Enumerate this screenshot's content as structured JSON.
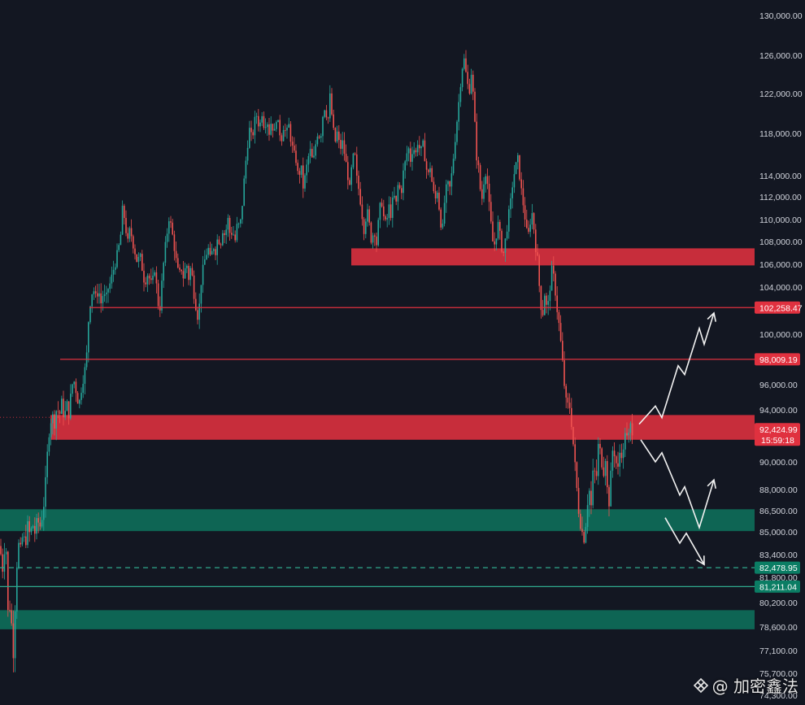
{
  "chart_data": {
    "type": "candlestick",
    "y_axis_ticks": [
      "130,000.00",
      "126,000.00",
      "122,000.00",
      "118,000.00",
      "114,000.00",
      "112,000.00",
      "110,000.00",
      "108,000.00",
      "106,000.00",
      "104,000.00",
      "100,000.00",
      "96,000.00",
      "94,000.00",
      "90,000.00",
      "88,000.00",
      "86,500.00",
      "85,000.00",
      "83,400.00",
      "81,800.00",
      "80,200.00",
      "78,600.00",
      "77,100.00",
      "75,700.00",
      "74,300.00"
    ],
    "y_axis_ticks_values": [
      130000,
      126000,
      122000,
      118000,
      114000,
      112000,
      110000,
      108000,
      106000,
      104000,
      100000,
      96000,
      94000,
      90000,
      88000,
      86500,
      85000,
      83400,
      81800,
      80200,
      78600,
      77100,
      75700,
      74300
    ],
    "price_tags": [
      {
        "value": 102258.47,
        "label": "102,258.47",
        "color": "#e0313f"
      },
      {
        "value": 98009.19,
        "label": "98,009.19",
        "color": "#e0313f"
      },
      {
        "value": 82478.95,
        "label": "82,478.95",
        "color": "#0b7d64"
      },
      {
        "value": 81211.04,
        "label": "81,211.04",
        "color": "#0b7d64"
      }
    ],
    "current_price": {
      "value": 92424.99,
      "label": "92,424.99",
      "countdown": "15:59:18",
      "color": "#e0313f"
    },
    "resistance_zones": [
      {
        "from": 105900,
        "to": 107400,
        "color": "#e0313f"
      },
      {
        "from": 91700,
        "to": 93600,
        "color": "#e0313f"
      }
    ],
    "support_zones": [
      {
        "from": 85050,
        "to": 86600,
        "color": "#0e6e5a"
      },
      {
        "from": 78450,
        "to": 79700,
        "color": "#0e6e5a"
      }
    ],
    "horizontal_lines": [
      {
        "value": 102258.47,
        "style": "solid",
        "color": "#e0313f"
      },
      {
        "value": 98009.19,
        "style": "solid",
        "color": "#e0313f"
      },
      {
        "value": 82478.95,
        "style": "dashed",
        "color": "#2fa88c"
      },
      {
        "value": 81211.04,
        "style": "solid",
        "color": "#2fa88c"
      }
    ],
    "projection_paths": [
      {
        "points": [
          [
            0,
            92900
          ],
          [
            20,
            94300
          ],
          [
            28,
            93400
          ],
          [
            48,
            97500
          ],
          [
            56,
            96800
          ],
          [
            74,
            100500
          ],
          [
            80,
            99200
          ],
          [
            92,
            101800
          ]
        ]
      },
      {
        "points": [
          [
            0,
            91700
          ],
          [
            18,
            90000
          ],
          [
            26,
            90700
          ],
          [
            48,
            87600
          ],
          [
            54,
            88200
          ],
          [
            72,
            85300
          ],
          [
            90,
            88700
          ]
        ]
      },
      {
        "points": [
          [
            0,
            86000
          ],
          [
            18,
            84200
          ],
          [
            26,
            84900
          ],
          [
            48,
            82700
          ]
        ]
      }
    ],
    "price_path": [
      [
        0,
        84000
      ],
      [
        3,
        82300
      ],
      [
        7,
        84800
      ],
      [
        10,
        79200
      ],
      [
        13,
        80300
      ],
      [
        16,
        76500
      ],
      [
        19,
        80500
      ],
      [
        22,
        84300
      ],
      [
        25,
        83600
      ],
      [
        28,
        84800
      ],
      [
        31,
        84100
      ],
      [
        34,
        85400
      ],
      [
        37,
        84700
      ],
      [
        40,
        85600
      ],
      [
        43,
        84900
      ],
      [
        46,
        85900
      ],
      [
        49,
        85300
      ],
      [
        52,
        86200
      ],
      [
        55,
        87500
      ],
      [
        58,
        90400
      ],
      [
        61,
        92800
      ],
      [
        64,
        93600
      ],
      [
        67,
        93000
      ],
      [
        70,
        94300
      ],
      [
        73,
        93500
      ],
      [
        76,
        94600
      ],
      [
        79,
        93300
      ],
      [
        82,
        94500
      ],
      [
        85,
        93600
      ],
      [
        88,
        95900
      ],
      [
        91,
        96300
      ],
      [
        94,
        95400
      ],
      [
        97,
        94300
      ],
      [
        100,
        95700
      ],
      [
        103,
        96800
      ],
      [
        106,
        97600
      ],
      [
        109,
        101400
      ],
      [
        112,
        103400
      ],
      [
        115,
        103800
      ],
      [
        118,
        103000
      ],
      [
        121,
        103900
      ],
      [
        124,
        102600
      ],
      [
        127,
        103500
      ],
      [
        130,
        102800
      ],
      [
        133,
        103900
      ],
      [
        136,
        104400
      ],
      [
        139,
        105400
      ],
      [
        142,
        106200
      ],
      [
        145,
        107100
      ],
      [
        148,
        108200
      ],
      [
        151,
        111200
      ],
      [
        154,
        109600
      ],
      [
        157,
        107800
      ],
      [
        160,
        109200
      ],
      [
        163,
        108000
      ],
      [
        166,
        107100
      ],
      [
        169,
        106100
      ],
      [
        172,
        106800
      ],
      [
        175,
        105600
      ],
      [
        178,
        104300
      ],
      [
        181,
        105200
      ],
      [
        184,
        104700
      ],
      [
        187,
        104000
      ],
      [
        190,
        105800
      ],
      [
        193,
        103700
      ],
      [
        196,
        101600
      ],
      [
        199,
        104300
      ],
      [
        202,
        106700
      ],
      [
        205,
        108500
      ],
      [
        208,
        110300
      ],
      [
        211,
        109100
      ],
      [
        214,
        107700
      ],
      [
        217,
        106100
      ],
      [
        220,
        104900
      ],
      [
        223,
        105700
      ],
      [
        226,
        104700
      ],
      [
        229,
        106300
      ],
      [
        232,
        104800
      ],
      [
        235,
        105900
      ],
      [
        238,
        103700
      ],
      [
        241,
        102400
      ],
      [
        244,
        101200
      ],
      [
        247,
        104300
      ],
      [
        250,
        105700
      ],
      [
        253,
        106800
      ],
      [
        256,
        107400
      ],
      [
        259,
        106200
      ],
      [
        262,
        107700
      ],
      [
        265,
        107200
      ],
      [
        268,
        108500
      ],
      [
        271,
        107700
      ],
      [
        274,
        109200
      ],
      [
        277,
        108400
      ],
      [
        280,
        110200
      ],
      [
        283,
        108600
      ],
      [
        286,
        109000
      ],
      [
        289,
        108000
      ],
      [
        292,
        109700
      ],
      [
        295,
        109200
      ],
      [
        298,
        111400
      ],
      [
        301,
        114300
      ],
      [
        304,
        116700
      ],
      [
        307,
        118500
      ],
      [
        310,
        117300
      ],
      [
        313,
        119200
      ],
      [
        316,
        119900
      ],
      [
        319,
        118400
      ],
      [
        322,
        120200
      ],
      [
        325,
        118600
      ],
      [
        328,
        119500
      ],
      [
        331,
        118100
      ],
      [
        334,
        119400
      ],
      [
        337,
        117700
      ],
      [
        340,
        119700
      ],
      [
        343,
        118500
      ],
      [
        346,
        117400
      ],
      [
        349,
        118900
      ],
      [
        352,
        117800
      ],
      [
        355,
        118900
      ],
      [
        358,
        117200
      ],
      [
        361,
        116100
      ],
      [
        364,
        115500
      ],
      [
        367,
        113700
      ],
      [
        370,
        115000
      ],
      [
        373,
        112800
      ],
      [
        376,
        114300
      ],
      [
        379,
        115700
      ],
      [
        382,
        116400
      ],
      [
        385,
        115000
      ],
      [
        388,
        116900
      ],
      [
        391,
        118300
      ],
      [
        394,
        117400
      ],
      [
        397,
        119800
      ],
      [
        400,
        120900
      ],
      [
        403,
        118900
      ],
      [
        406,
        121900
      ],
      [
        409,
        118900
      ],
      [
        412,
        117100
      ],
      [
        415,
        118200
      ],
      [
        418,
        116400
      ],
      [
        421,
        117200
      ],
      [
        424,
        115900
      ],
      [
        427,
        114400
      ],
      [
        430,
        112700
      ],
      [
        433,
        115200
      ],
      [
        436,
        116300
      ],
      [
        439,
        113500
      ],
      [
        442,
        112400
      ],
      [
        445,
        110600
      ],
      [
        448,
        108900
      ],
      [
        451,
        111000
      ],
      [
        454,
        109600
      ],
      [
        457,
        107900
      ],
      [
        460,
        109300
      ],
      [
        463,
        107800
      ],
      [
        466,
        110300
      ],
      [
        469,
        111900
      ],
      [
        472,
        110100
      ],
      [
        475,
        109400
      ],
      [
        478,
        111200
      ],
      [
        481,
        110400
      ],
      [
        484,
        112300
      ],
      [
        487,
        111200
      ],
      [
        490,
        113500
      ],
      [
        493,
        112100
      ],
      [
        496,
        114300
      ],
      [
        499,
        115500
      ],
      [
        502,
        116800
      ],
      [
        505,
        115400
      ],
      [
        508,
        116900
      ],
      [
        511,
        115900
      ],
      [
        514,
        117400
      ],
      [
        517,
        116100
      ],
      [
        520,
        117000
      ],
      [
        523,
        115500
      ],
      [
        526,
        113800
      ],
      [
        529,
        114900
      ],
      [
        532,
        112900
      ],
      [
        535,
        111600
      ],
      [
        538,
        112700
      ],
      [
        541,
        110300
      ],
      [
        544,
        108800
      ],
      [
        547,
        111900
      ],
      [
        550,
        113300
      ],
      [
        553,
        112700
      ],
      [
        556,
        114400
      ],
      [
        559,
        116900
      ],
      [
        562,
        119300
      ],
      [
        565,
        121800
      ],
      [
        568,
        124600
      ],
      [
        571,
        125600
      ],
      [
        574,
        123400
      ],
      [
        577,
        122100
      ],
      [
        580,
        124500
      ],
      [
        583,
        120300
      ],
      [
        586,
        115900
      ],
      [
        589,
        114400
      ],
      [
        592,
        111300
      ],
      [
        595,
        113500
      ],
      [
        598,
        114700
      ],
      [
        601,
        111600
      ],
      [
        604,
        109400
      ],
      [
        607,
        107300
      ],
      [
        610,
        108500
      ],
      [
        613,
        109700
      ],
      [
        616,
        107800
      ],
      [
        619,
        106900
      ],
      [
        622,
        108400
      ],
      [
        625,
        110100
      ],
      [
        628,
        111500
      ],
      [
        631,
        113700
      ],
      [
        634,
        114800
      ],
      [
        637,
        115600
      ],
      [
        640,
        113200
      ],
      [
        643,
        111600
      ],
      [
        646,
        110000
      ],
      [
        649,
        108100
      ],
      [
        652,
        109800
      ],
      [
        655,
        110700
      ],
      [
        658,
        107900
      ],
      [
        661,
        106400
      ],
      [
        664,
        103300
      ],
      [
        667,
        101400
      ],
      [
        670,
        103600
      ],
      [
        673,
        101700
      ],
      [
        676,
        103800
      ],
      [
        679,
        105700
      ],
      [
        682,
        104300
      ],
      [
        685,
        102200
      ],
      [
        688,
        100500
      ],
      [
        691,
        98300
      ],
      [
        694,
        96000
      ],
      [
        697,
        94100
      ],
      [
        700,
        94600
      ],
      [
        703,
        92900
      ],
      [
        706,
        90600
      ],
      [
        709,
        88300
      ],
      [
        712,
        86300
      ],
      [
        715,
        85200
      ],
      [
        718,
        84500
      ],
      [
        721,
        85900
      ],
      [
        724,
        88300
      ],
      [
        727,
        86800
      ],
      [
        730,
        89900
      ],
      [
        733,
        88400
      ],
      [
        736,
        91400
      ],
      [
        739,
        90500
      ],
      [
        742,
        89200
      ],
      [
        745,
        90600
      ],
      [
        748,
        86300
      ],
      [
        751,
        88800
      ],
      [
        754,
        91400
      ],
      [
        757,
        90100
      ],
      [
        760,
        89400
      ],
      [
        763,
        91200
      ],
      [
        766,
        90200
      ],
      [
        769,
        92600
      ],
      [
        772,
        91400
      ],
      [
        775,
        92800
      ],
      [
        778,
        92425
      ]
    ]
  },
  "watermark": {
    "handle": "@ 加密鑫法",
    "logo_icon": "binance-square-icon"
  }
}
